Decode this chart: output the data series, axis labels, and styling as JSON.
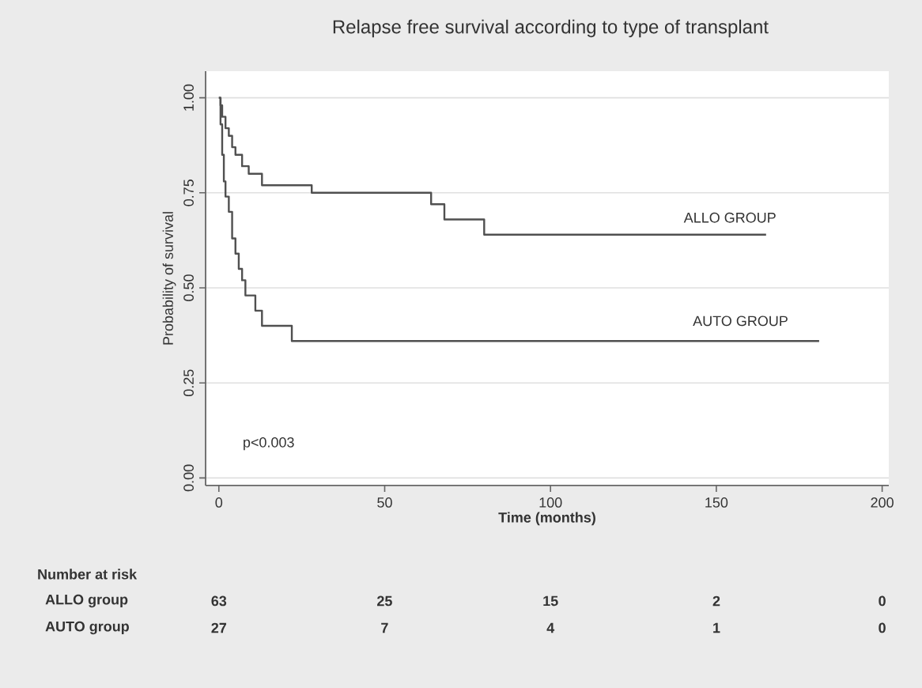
{
  "chart_data": {
    "type": "step",
    "title": "Relapse free survival according to type of transplant",
    "xlabel": "Time (months)",
    "ylabel": "Probability of survival",
    "series": [
      {
        "name": "ALLO GROUP",
        "color": "#505050",
        "x": [
          0,
          0.5,
          1,
          2,
          3,
          4,
          5,
          7,
          9,
          13,
          28,
          64,
          68,
          80,
          165
        ],
        "values": [
          1.0,
          0.98,
          0.95,
          0.92,
          0.9,
          0.87,
          0.85,
          0.82,
          0.8,
          0.77,
          0.75,
          0.72,
          0.68,
          0.64,
          0.64
        ]
      },
      {
        "name": "AUTO GROUP",
        "color": "#505050",
        "x": [
          0,
          0.5,
          1,
          1.5,
          2,
          3,
          4,
          5,
          6,
          7,
          8,
          11,
          13,
          22,
          181
        ],
        "values": [
          1.0,
          0.93,
          0.85,
          0.78,
          0.74,
          0.7,
          0.63,
          0.59,
          0.55,
          0.52,
          0.48,
          0.44,
          0.4,
          0.36,
          0.36
        ]
      }
    ],
    "xlim": [
      -4,
      202
    ],
    "xticks": [
      0,
      50,
      100,
      150,
      200
    ],
    "ylim": [
      -0.02,
      1.07
    ],
    "yticks": [
      {
        "value": 0,
        "label": "0.00"
      },
      {
        "value": 0.25,
        "label": "0.25"
      },
      {
        "value": 0.5,
        "label": "0.50"
      },
      {
        "value": 0.75,
        "label": "0.75"
      },
      {
        "value": 1,
        "label": "1.00"
      }
    ],
    "grid": "y",
    "legend": false,
    "marker": "none",
    "line_style": "solid",
    "annotations": [
      "p<0.003",
      "Number at risk",
      "ALLO  group",
      "63",
      "25",
      "15",
      "2",
      "0",
      "AUTO group",
      "27",
      "7",
      "4",
      "1",
      "0"
    ]
  }
}
